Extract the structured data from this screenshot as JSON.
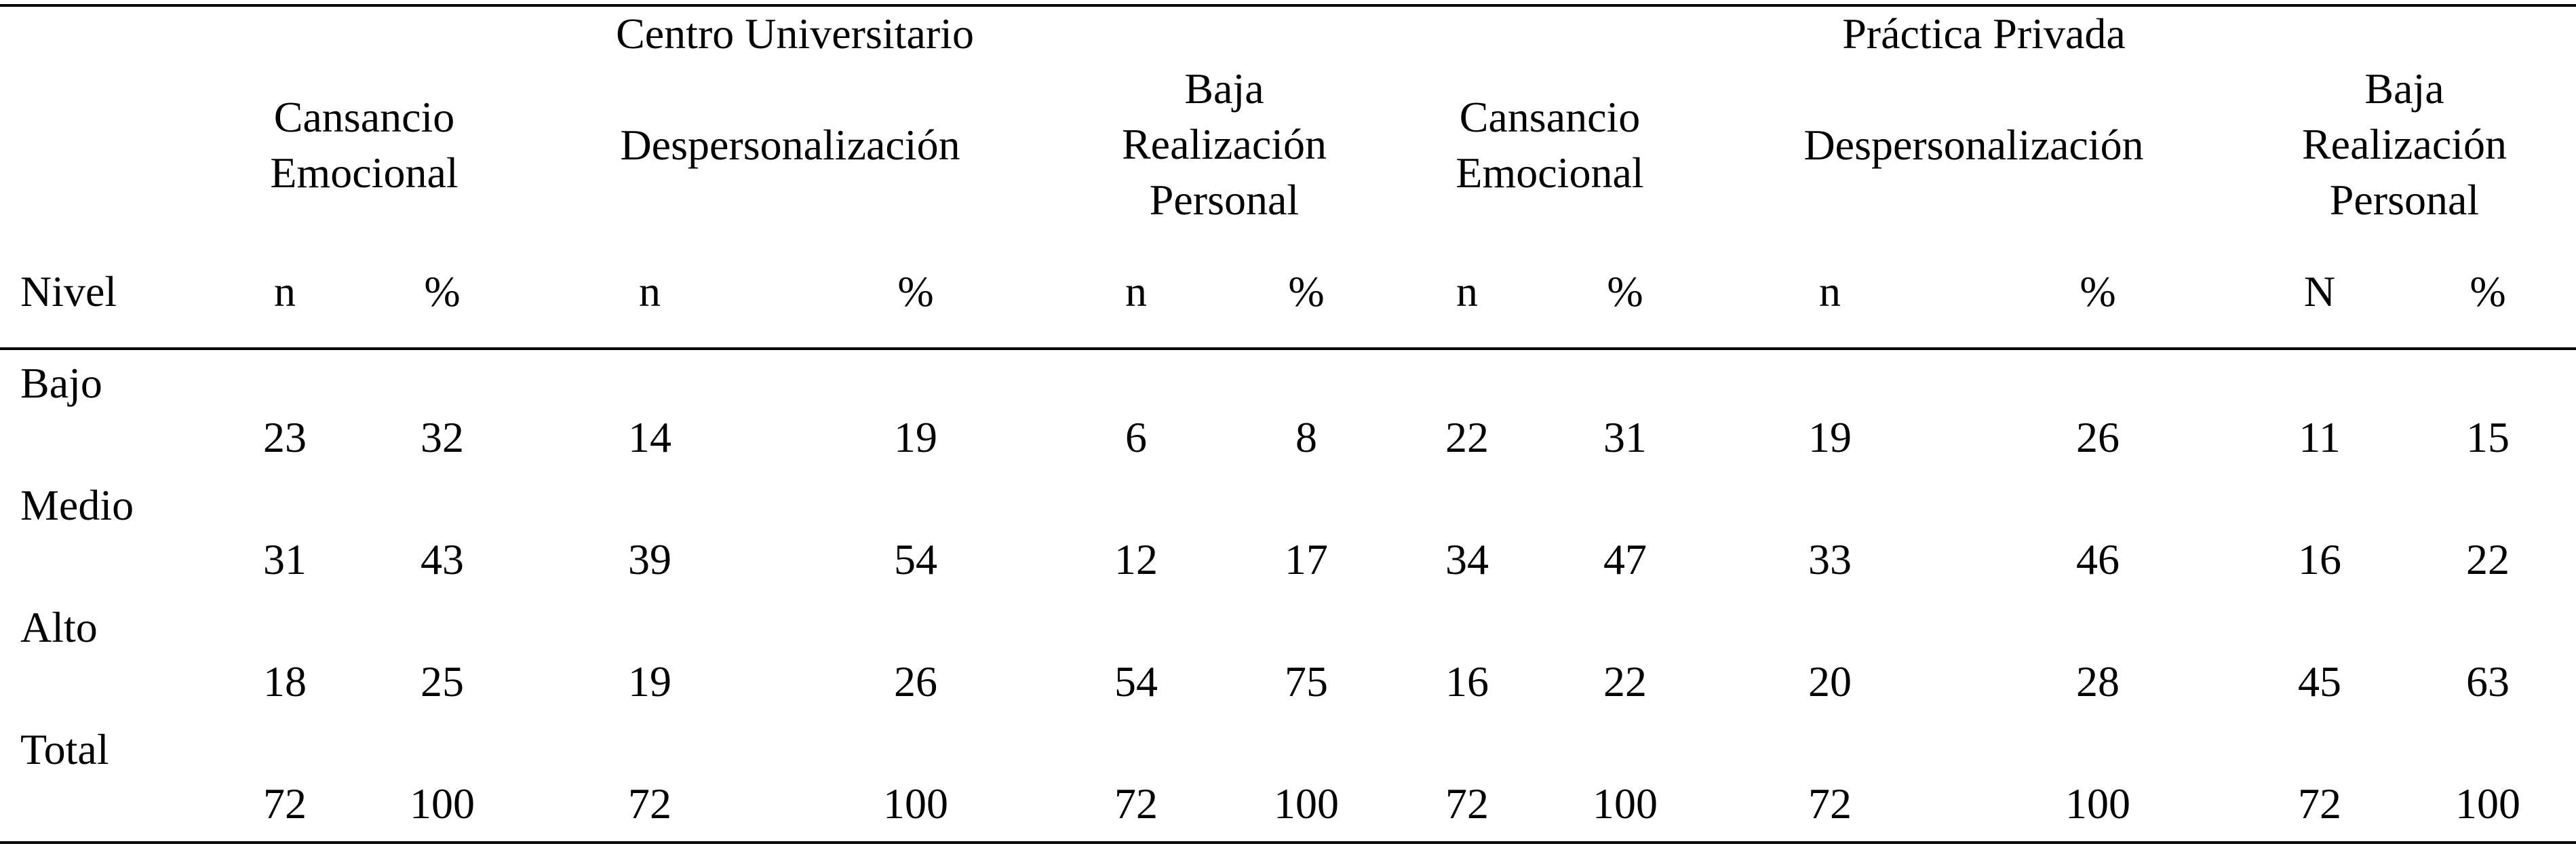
{
  "groups": {
    "cu": "Centro Universitario",
    "pp": "Práctica Privada"
  },
  "subheaders": {
    "cu_ce": [
      "Cansancio",
      "Emocional"
    ],
    "cu_de": "Despersonalización",
    "cu_br": [
      "Baja",
      "Realización",
      "Personal"
    ],
    "pp_ce": [
      "Cansancio",
      "Emocional"
    ],
    "pp_de": "Despersonalización",
    "pp_br": [
      "Baja",
      "Realización",
      "Personal"
    ]
  },
  "columns": {
    "nivel": "Nivel",
    "labels": [
      "n",
      "%",
      "n",
      "%",
      "n",
      "%",
      "n",
      "%",
      "n",
      "%",
      "N",
      "%"
    ]
  },
  "rows": [
    {
      "nivel": "Bajo",
      "values": [
        "23",
        "32",
        "14",
        "19",
        "6",
        "8",
        "22",
        "31",
        "19",
        "26",
        "11",
        "15"
      ]
    },
    {
      "nivel": "Medio",
      "values": [
        "31",
        "43",
        "39",
        "54",
        "12",
        "17",
        "34",
        "47",
        "33",
        "46",
        "16",
        "22"
      ]
    },
    {
      "nivel": "Alto",
      "values": [
        "18",
        "25",
        "19",
        "26",
        "54",
        "75",
        "16",
        "22",
        "20",
        "28",
        "45",
        "63"
      ]
    },
    {
      "nivel": "Total",
      "values": [
        "72",
        "100",
        "72",
        "100",
        "72",
        "100",
        "72",
        "100",
        "72",
        "100",
        "72",
        "100"
      ]
    }
  ]
}
